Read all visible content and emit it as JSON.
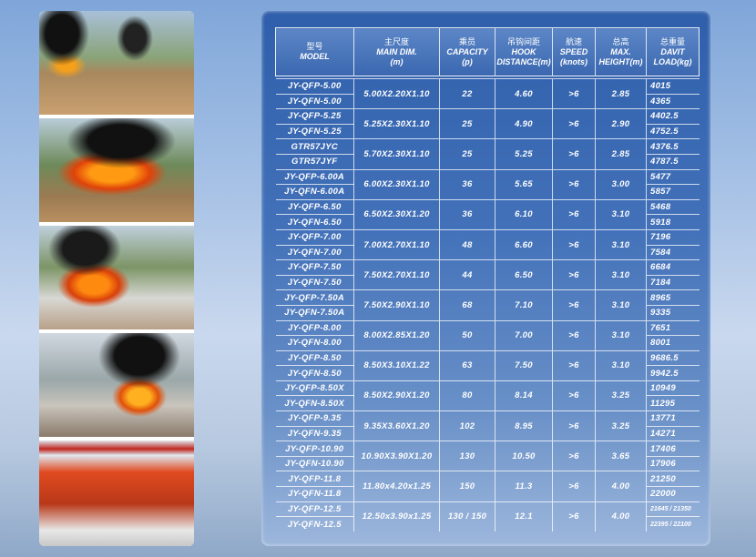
{
  "headers": [
    {
      "cn": "型号",
      "en": "MODEL",
      "unit": ""
    },
    {
      "cn": "主尺度",
      "en": "MAIN DIM.",
      "unit": "(m)"
    },
    {
      "cn": "乘员",
      "en": "CAPACITY",
      "unit": "(p)"
    },
    {
      "cn": "吊钩间距",
      "en": "HOOK",
      "unit": "DISTANCE(m)"
    },
    {
      "cn": "航速",
      "en": "SPEED",
      "unit": "(knots)"
    },
    {
      "cn": "总高",
      "en": "MAX.",
      "unit": "HEIGHT(m)"
    },
    {
      "cn": "总重量",
      "en": "DAVIT",
      "unit": "LOAD(kg)"
    }
  ],
  "groups": [
    {
      "models": [
        "JY-QFP-5.00",
        "JY-QFN-5.00"
      ],
      "dim": "5.00X2.20X1.10",
      "capacity": "22",
      "hook": "4.60",
      "speed": ">6",
      "height": "2.85",
      "davit": [
        "4015",
        "4365"
      ]
    },
    {
      "models": [
        "JY-QFP-5.25",
        "JY-QFN-5.25"
      ],
      "dim": "5.25X2.30X1.10",
      "capacity": "25",
      "hook": "4.90",
      "speed": ">6",
      "height": "2.90",
      "davit": [
        "4402.5",
        "4752.5"
      ]
    },
    {
      "models": [
        "GTR57JYC",
        "GTR57JYF"
      ],
      "dim": "5.70X2.30X1.10",
      "capacity": "25",
      "hook": "5.25",
      "speed": ">6",
      "height": "2.85",
      "davit": [
        "4376.5",
        "4787.5"
      ]
    },
    {
      "models": [
        "JY-QFP-6.00A",
        "JY-QFN-6.00A"
      ],
      "dim": "6.00X2.30X1.10",
      "capacity": "36",
      "hook": "5.65",
      "speed": ">6",
      "height": "3.00",
      "davit": [
        "5477",
        "5857"
      ]
    },
    {
      "models": [
        "JY-QFP-6.50",
        "JY-QFN-6.50"
      ],
      "dim": "6.50X2.30X1.20",
      "capacity": "36",
      "hook": "6.10",
      "speed": ">6",
      "height": "3.10",
      "davit": [
        "5468",
        "5918"
      ]
    },
    {
      "models": [
        "JY-QFP-7.00",
        "JY-QFN-7.00"
      ],
      "dim": "7.00X2.70X1.10",
      "capacity": "48",
      "hook": "6.60",
      "speed": ">6",
      "height": "3.10",
      "davit": [
        "7196",
        "7584"
      ]
    },
    {
      "models": [
        "JY-QFP-7.50",
        "JY-QFN-7.50"
      ],
      "dim": "7.50X2.70X1.10",
      "capacity": "44",
      "hook": "6.50",
      "speed": ">6",
      "height": "3.10",
      "davit": [
        "6684",
        "7184"
      ]
    },
    {
      "models": [
        "JY-QFP-7.50A",
        "JY-QFN-7.50A"
      ],
      "dim": "7.50X2.90X1.10",
      "capacity": "68",
      "hook": "7.10",
      "speed": ">6",
      "height": "3.10",
      "davit": [
        "8965",
        "9335"
      ]
    },
    {
      "models": [
        "JY-QFP-8.00",
        "JY-QFN-8.00"
      ],
      "dim": "8.00X2.85X1.20",
      "capacity": "50",
      "hook": "7.00",
      "speed": ">6",
      "height": "3.10",
      "davit": [
        "7651",
        "8001"
      ]
    },
    {
      "models": [
        "JY-QFP-8.50",
        "JY-QFN-8.50"
      ],
      "dim": "8.50X3.10X1.22",
      "capacity": "63",
      "hook": "7.50",
      "speed": ">6",
      "height": "3.10",
      "davit": [
        "9686.5",
        "9942.5"
      ]
    },
    {
      "models": [
        "JY-QFP-8.50X",
        "JY-QFN-8.50X"
      ],
      "dim": "8.50X2.90X1.20",
      "capacity": "80",
      "hook": "8.14",
      "speed": ">6",
      "height": "3.25",
      "davit": [
        "10949",
        "11295"
      ]
    },
    {
      "models": [
        "JY-QFP-9.35",
        "JY-QFN-9.35"
      ],
      "dim": "9.35X3.60X1.20",
      "capacity": "102",
      "hook": "8.95",
      "speed": ">6",
      "height": "3.25",
      "davit": [
        "13771",
        "14271"
      ]
    },
    {
      "models": [
        "JY-QFP-10.90",
        "JY-QFN-10.90"
      ],
      "dim": "10.90X3.90X1.20",
      "capacity": "130",
      "hook": "10.50",
      "speed": ">6",
      "height": "3.65",
      "davit": [
        "17406",
        "17906"
      ]
    },
    {
      "models": [
        "JY-QFP-11.8",
        "JY-QFN-11.8"
      ],
      "dim": "11.80x4.20x1.25",
      "capacity": "150",
      "hook": "11.3",
      "speed": ">6",
      "height": "4.00",
      "davit": [
        "21250",
        "22000"
      ]
    },
    {
      "models": [
        "JY-QFP-12.5",
        "JY-QFN-12.5"
      ],
      "dim": "12.50x3.90x1.25",
      "capacity": "130 / 150",
      "hook": "12.1",
      "speed": ">6",
      "height": "4.00",
      "davit": [
        "21645 / 21350",
        "22395 / 22100"
      ]
    }
  ]
}
